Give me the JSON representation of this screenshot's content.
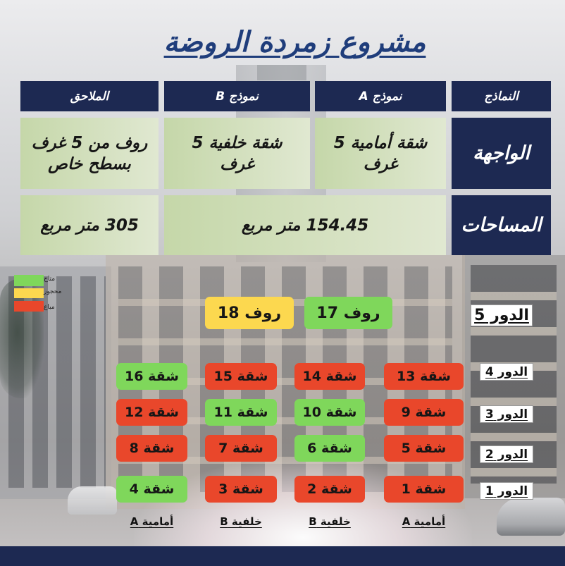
{
  "title": "مشروع زمردة الروضة",
  "colors": {
    "navy": "#1d2952",
    "title": "#1f3d7b",
    "cell_from": "#c5d7a9",
    "cell_to": "#e0e8d1"
  },
  "table": {
    "header": {
      "models": "النماذج",
      "model_a": "نموذج A",
      "model_b": "نموذج B",
      "annexes": "الملاحق"
    },
    "facade": {
      "label": "الواجهة",
      "model_a": "شقة أمامية 5 غرف",
      "model_b": "شقة خلفية 5 غرف",
      "annexes": "روف من 5 غرف بسطح خاص"
    },
    "areas": {
      "label": "المساحات",
      "model_ab": "154.45 متر مربع",
      "annexes": "305 متر مربع"
    }
  },
  "legend": [
    {
      "label": "متاح",
      "color": "#7fd75b"
    },
    {
      "label": "محجوز",
      "color": "#fcd84f"
    },
    {
      "label": "مباع",
      "color": "#e9472b"
    }
  ],
  "floors": [
    {
      "label": "الدور 5",
      "units": [
        {
          "name": "روف 17",
          "status": "متاح"
        },
        {
          "name": "روف 18",
          "status": "محجوز"
        }
      ]
    },
    {
      "label": "الدور 4",
      "units": [
        {
          "name": "شقة 13",
          "status": "مباع"
        },
        {
          "name": "شقة 14",
          "status": "مباع"
        },
        {
          "name": "شقة 15",
          "status": "مباع"
        },
        {
          "name": "شقة 16",
          "status": "متاح"
        }
      ]
    },
    {
      "label": "الدور 3",
      "units": [
        {
          "name": "شقة 9",
          "status": "مباع"
        },
        {
          "name": "شقة 10",
          "status": "متاح"
        },
        {
          "name": "شقة 11",
          "status": "متاح"
        },
        {
          "name": "شقة 12",
          "status": "مباع"
        }
      ]
    },
    {
      "label": "الدور 2",
      "units": [
        {
          "name": "شقة 5",
          "status": "مباع"
        },
        {
          "name": "شقة 6",
          "status": "متاح"
        },
        {
          "name": "شقة 7",
          "status": "مباع"
        },
        {
          "name": "شقة 8",
          "status": "مباع"
        }
      ]
    },
    {
      "label": "الدور 1",
      "units": [
        {
          "name": "شقة 1",
          "status": "مباع"
        },
        {
          "name": "شقة 2",
          "status": "مباع"
        },
        {
          "name": "شقة 3",
          "status": "مباع"
        },
        {
          "name": "شقة 4",
          "status": "متاح"
        }
      ]
    }
  ],
  "columns": [
    "أمامية A",
    "خلفية B",
    "خلفية B",
    "أمامية A"
  ]
}
